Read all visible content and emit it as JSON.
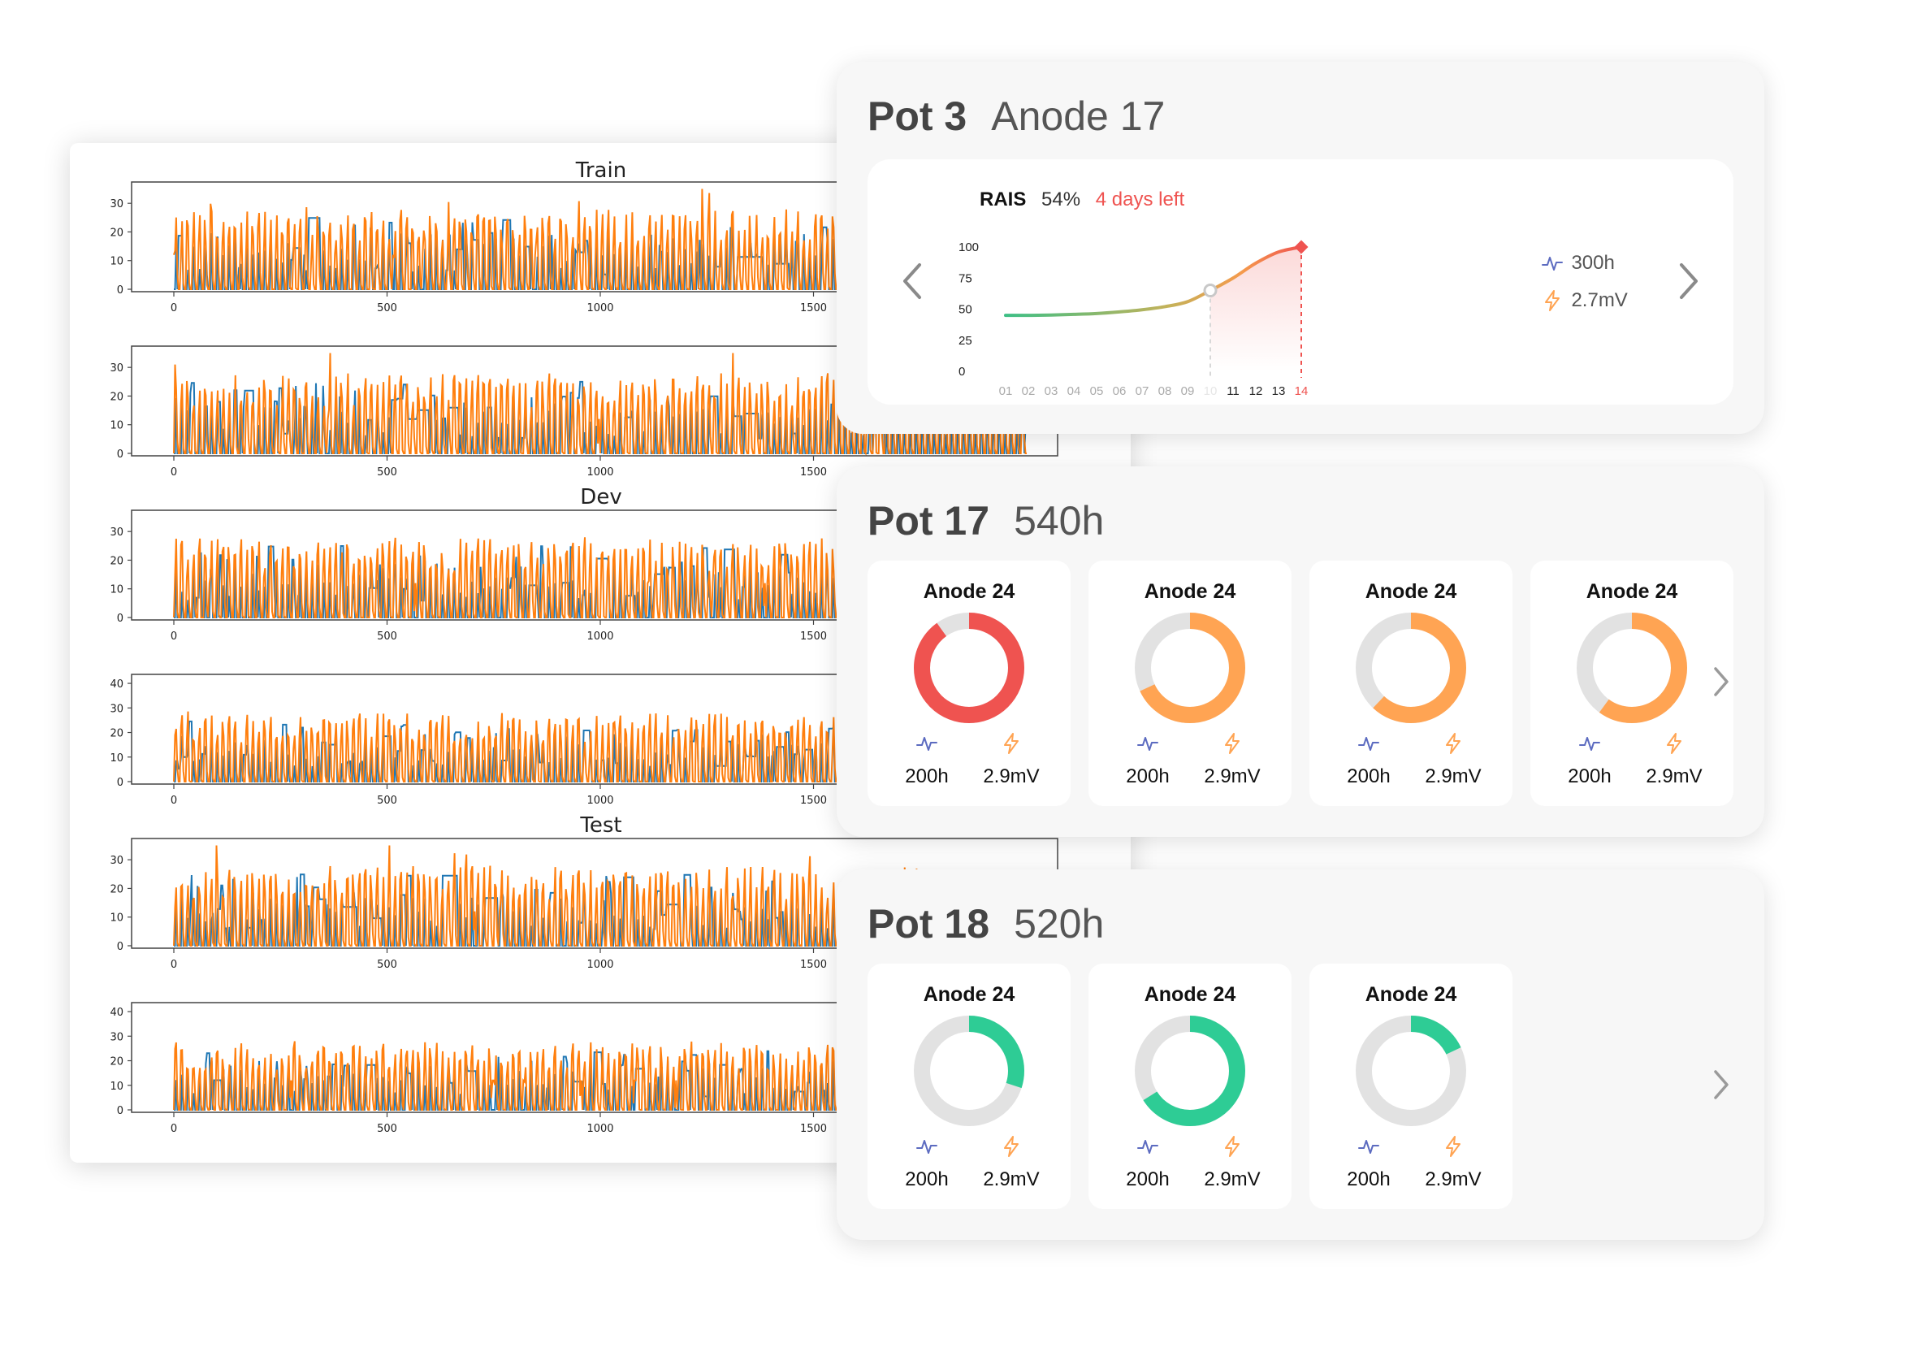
{
  "plots": {
    "titles": [
      "Train",
      "Dev",
      "Test"
    ],
    "xticks": [
      "0",
      "500",
      "1000",
      "1500"
    ],
    "rows": [
      {
        "yticks": [
          "0",
          "10",
          "20",
          "30"
        ]
      },
      {
        "yticks": [
          "0",
          "10",
          "20",
          "30"
        ]
      },
      {
        "yticks": [
          "0",
          "10",
          "20",
          "30"
        ]
      },
      {
        "yticks": [
          "0",
          "10",
          "20",
          "30",
          "40"
        ]
      },
      {
        "yticks": [
          "0",
          "10",
          "20",
          "30"
        ]
      },
      {
        "yticks": [
          "0",
          "10",
          "20",
          "30",
          "40"
        ]
      }
    ],
    "colors": {
      "actual": "#1f77b4",
      "predicted": "#ff7f0e"
    }
  },
  "pot3": {
    "pot": "Pot 3",
    "anode": "Anode 17",
    "rais_label": "RAIS",
    "rais_value": "54%",
    "days_left": "4 days left",
    "hours": "300h",
    "voltage": "2.7mV",
    "chart_data": {
      "type": "line",
      "categories": [
        "01",
        "02",
        "03",
        "04",
        "05",
        "06",
        "07",
        "08",
        "09",
        "10",
        "11",
        "12",
        "13",
        "14"
      ],
      "values": [
        45,
        45,
        45.3,
        45.8,
        46.5,
        47.8,
        49.5,
        52,
        56,
        65,
        75,
        87,
        96,
        100
      ],
      "ylim": [
        0,
        100
      ],
      "yticks": [
        "0",
        "25",
        "50",
        "75",
        "100"
      ],
      "current_index": 9,
      "highlight_index": 13
    }
  },
  "pot17": {
    "pot": "Pot 17",
    "hours": "540h",
    "anodes": [
      {
        "name": "Anode 24",
        "fraction": 0.9,
        "color": "#ef5350",
        "hours": "200h",
        "voltage": "2.9mV"
      },
      {
        "name": "Anode 24",
        "fraction": 0.68,
        "color": "#ffa453",
        "hours": "200h",
        "voltage": "2.9mV"
      },
      {
        "name": "Anode 24",
        "fraction": 0.62,
        "color": "#ffa453",
        "hours": "200h",
        "voltage": "2.9mV"
      },
      {
        "name": "Anode 24",
        "fraction": 0.6,
        "color": "#ffa453",
        "hours": "200h",
        "voltage": "2.9mV"
      }
    ]
  },
  "pot18": {
    "pot": "Pot 18",
    "hours": "520h",
    "anodes": [
      {
        "name": "Anode 24",
        "fraction": 0.3,
        "color": "#2ecc95",
        "hours": "200h",
        "voltage": "2.9mV"
      },
      {
        "name": "Anode 24",
        "fraction": 0.66,
        "color": "#2ecc95",
        "hours": "200h",
        "voltage": "2.9mV"
      },
      {
        "name": "Anode 24",
        "fraction": 0.18,
        "color": "#2ecc95",
        "hours": "200h",
        "voltage": "2.9mV"
      }
    ]
  },
  "colors": {
    "accent_red": "#ef5350",
    "accent_orange": "#ffa453",
    "accent_green": "#2ecc95",
    "icon_blue": "#5c6bc0",
    "track": "#e2e2e2"
  },
  "icons": {
    "hours": "pulse-icon",
    "voltage": "lightning-icon",
    "prev": "chevron-left-icon",
    "next": "chevron-right-icon"
  }
}
